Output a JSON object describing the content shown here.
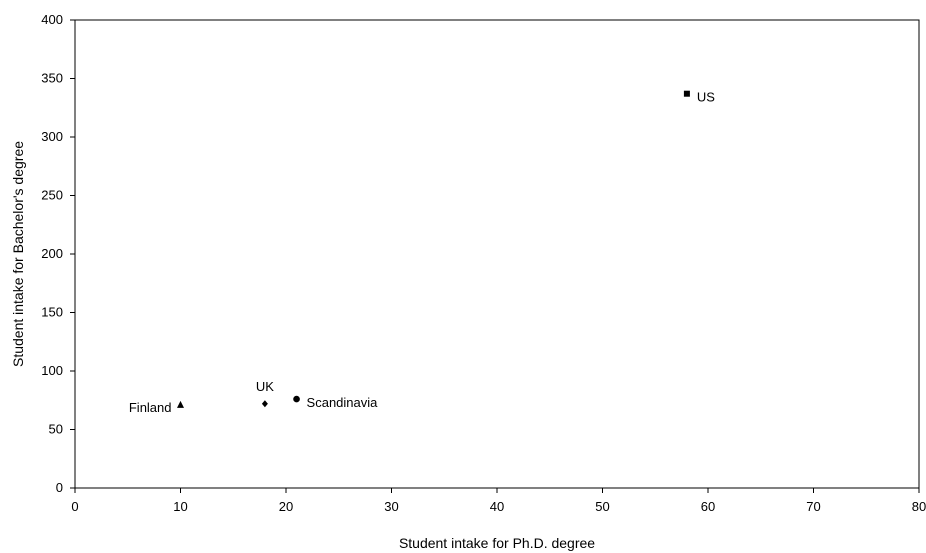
{
  "chart_data": {
    "type": "scatter",
    "title": "",
    "xlabel": "Student intake for Ph.D. degree",
    "ylabel": "Student intake for Bachelor's degree",
    "xlim": [
      0,
      80
    ],
    "ylim": [
      0,
      400
    ],
    "xticks": [
      "0",
      "10",
      "20",
      "30",
      "40",
      "50",
      "60",
      "70",
      "80"
    ],
    "yticks": [
      "0",
      "50",
      "100",
      "150",
      "200",
      "250",
      "300",
      "350",
      "400"
    ],
    "grid": false,
    "legend": "none",
    "points": [
      {
        "label": "US",
        "x": 58,
        "y": 337,
        "marker": "square",
        "label_pos": "right"
      },
      {
        "label": "Finland",
        "x": 10,
        "y": 71,
        "marker": "triangle",
        "label_pos": "left"
      },
      {
        "label": "UK",
        "x": 18,
        "y": 72,
        "marker": "diamond",
        "label_pos": "above"
      },
      {
        "label": "Scandinavia",
        "x": 21,
        "y": 76,
        "marker": "circle",
        "label_pos": "right"
      }
    ],
    "colors": {
      "marker": "#000000",
      "axis": "#000000",
      "background": "#ffffff"
    }
  }
}
